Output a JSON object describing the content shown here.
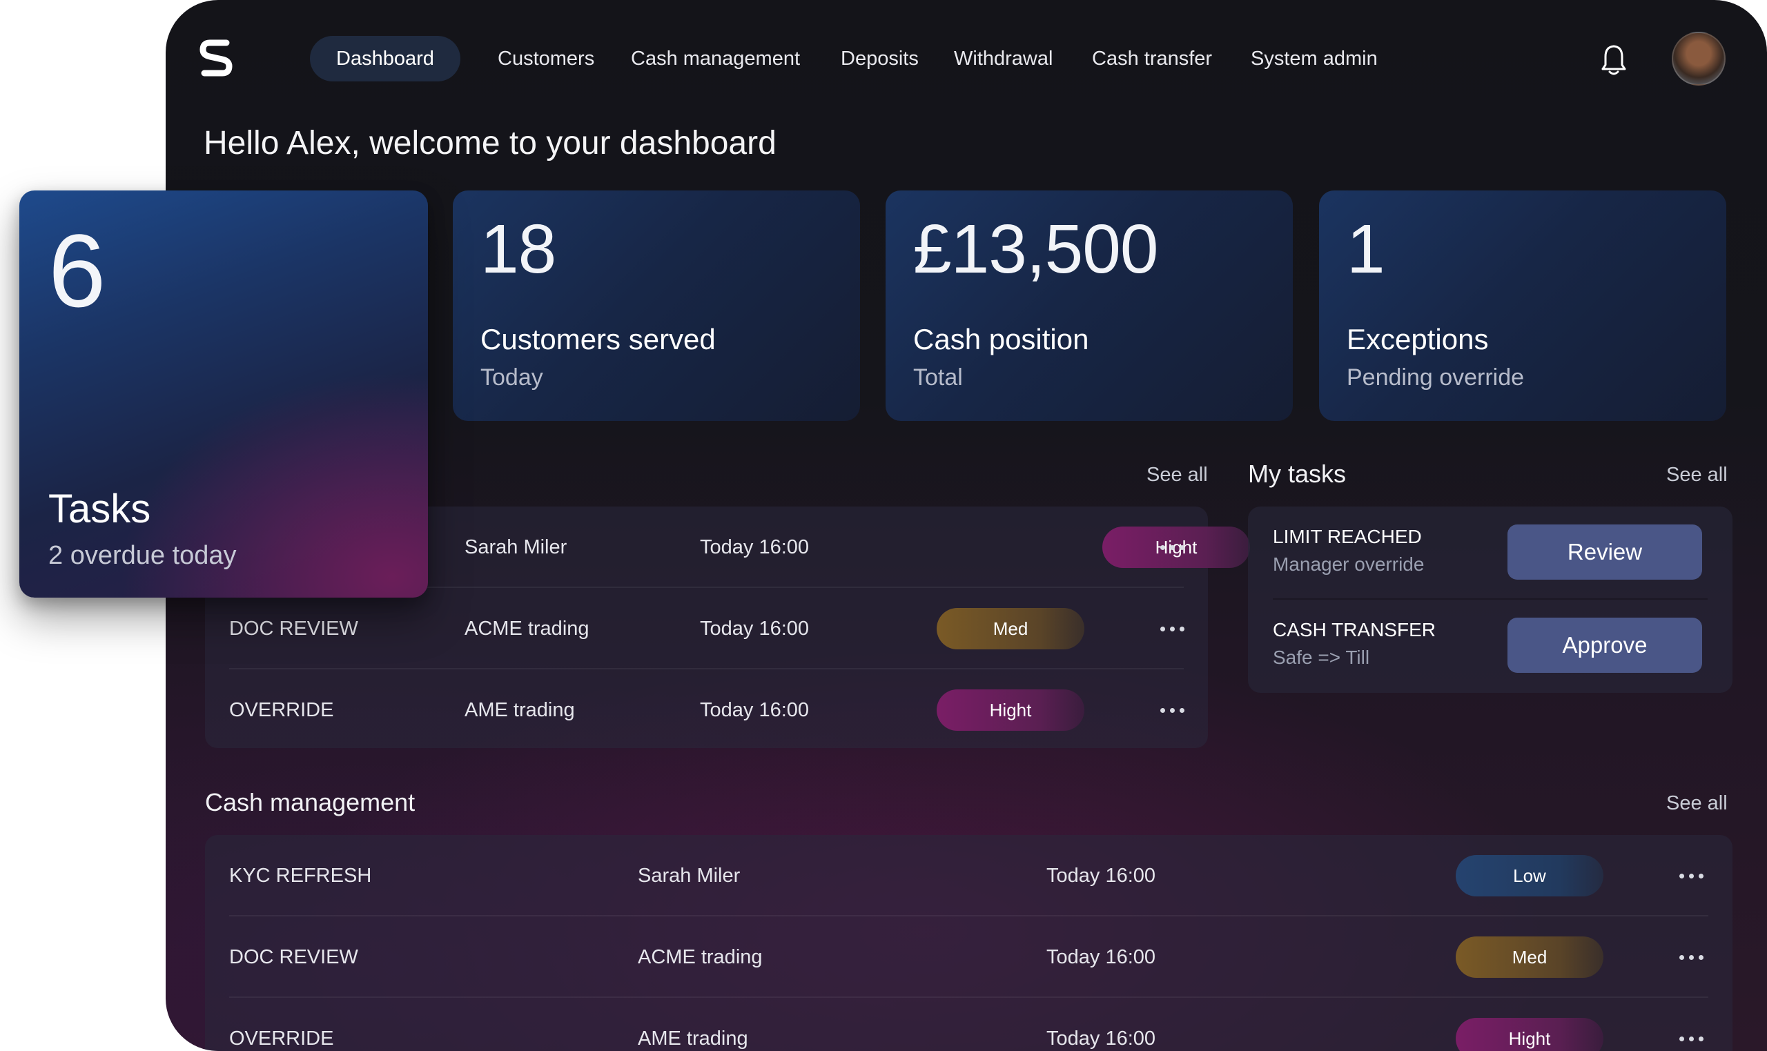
{
  "nav": {
    "items": [
      {
        "label": "Dashboard",
        "active": true
      },
      {
        "label": "Customers"
      },
      {
        "label": "Cash management"
      },
      {
        "label": "Deposits"
      },
      {
        "label": "Withdrawal"
      },
      {
        "label": "Cash transfer"
      },
      {
        "label": "System admin"
      }
    ],
    "icons": [
      "logo-s-icon",
      "bell-icon",
      "avatar"
    ]
  },
  "greeting": "Hello Alex, welcome to your dashboard",
  "tasks_card": {
    "value": "6",
    "label": "Tasks",
    "sub": "2 overdue today"
  },
  "stats": [
    {
      "value": "18",
      "label": "Customers served",
      "sub": "Today"
    },
    {
      "value": "£13,500",
      "label": "Cash position",
      "sub": "Total"
    },
    {
      "value": "1",
      "label": "Exceptions",
      "sub": "Pending override"
    }
  ],
  "queue": {
    "see_all": "See all",
    "rows": [
      {
        "type": "",
        "name": "Sarah Miler",
        "time": "Today 16:00",
        "priority": "Hight"
      },
      {
        "type": "DOC REVIEW",
        "name": "ACME trading",
        "time": "Today 16:00",
        "priority": "Med"
      },
      {
        "type": "OVERRIDE",
        "name": "AME trading",
        "time": "Today 16:00",
        "priority": "Hight"
      }
    ]
  },
  "my_tasks": {
    "title": "My tasks",
    "see_all": "See all",
    "items": [
      {
        "title": "LIMIT REACHED",
        "sub": "Manager override",
        "action": "Review"
      },
      {
        "title": "CASH TRANSFER",
        "sub": "Safe => Till",
        "action": "Approve"
      }
    ]
  },
  "cash_management": {
    "title": "Cash management",
    "see_all": "See all",
    "rows": [
      {
        "type": "KYC REFRESH",
        "name": "Sarah Miler",
        "time": "Today 16:00",
        "priority": "Low"
      },
      {
        "type": "DOC REVIEW",
        "name": "ACME trading",
        "time": "Today 16:00",
        "priority": "Med"
      },
      {
        "type": "OVERRIDE",
        "name": "AME trading",
        "time": "Today 16:00",
        "priority": "Hight"
      }
    ]
  },
  "colors": {
    "high": "#7a1e66",
    "med": "#7a5a26",
    "low": "#25436f",
    "button": "#4a5687"
  }
}
